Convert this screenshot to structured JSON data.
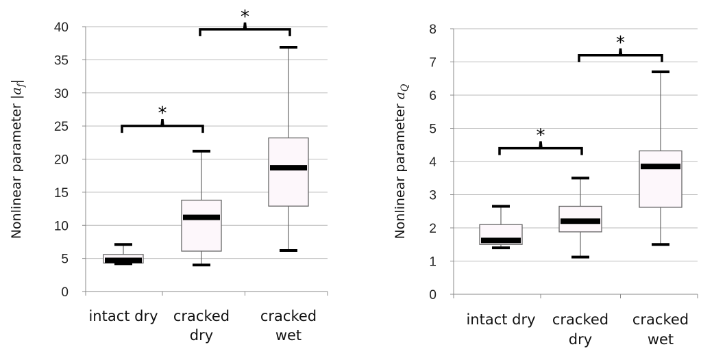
{
  "chart_data": [
    {
      "type": "box",
      "categories": [
        "intact dry",
        "cracked dry",
        "cracked wet"
      ],
      "category_lines": [
        [
          "intact dry"
        ],
        [
          "cracked",
          "dry"
        ],
        [
          "cracked",
          "wet"
        ]
      ],
      "ylabel_text": "Nonlinear parameter ",
      "ylabel_symbol": "|a",
      "ylabel_sub": "f",
      "ylabel_close": "|",
      "ylim": [
        0,
        40
      ],
      "yticks": [
        "0",
        "5",
        "10",
        "15",
        "20",
        "25",
        "30",
        "35",
        "40"
      ],
      "grid": true,
      "boxes": [
        {
          "min": 4.2,
          "q1": 4.3,
          "median": 4.7,
          "q3": 5.6,
          "max": 7.1
        },
        {
          "min": 4.0,
          "q1": 6.1,
          "median": 11.2,
          "q3": 13.8,
          "max": 21.2
        },
        {
          "min": 6.2,
          "q1": 12.9,
          "median": 18.7,
          "q3": 23.2,
          "max": 36.9
        }
      ],
      "significance": [
        {
          "from": 0,
          "to": 1,
          "y": 25.0,
          "label": "*"
        },
        {
          "from": 1,
          "to": 2,
          "y": 39.6,
          "label": "*"
        }
      ]
    },
    {
      "type": "box",
      "categories": [
        "intact dry",
        "cracked dry",
        "cracked wet"
      ],
      "category_lines": [
        [
          "intact dry"
        ],
        [
          "cracked",
          "dry"
        ],
        [
          "cracked",
          "wet"
        ]
      ],
      "ylabel_text": "Nonlinear parameter ",
      "ylabel_symbol": "a",
      "ylabel_sub": "Q",
      "ylabel_close": "",
      "ylim": [
        0,
        8
      ],
      "yticks": [
        "0",
        "1",
        "2",
        "3",
        "4",
        "5",
        "6",
        "7",
        "8"
      ],
      "grid": true,
      "boxes": [
        {
          "min": 1.4,
          "q1": 1.5,
          "median": 1.62,
          "q3": 2.1,
          "max": 2.65
        },
        {
          "min": 1.12,
          "q1": 1.88,
          "median": 2.2,
          "q3": 2.65,
          "max": 3.5
        },
        {
          "min": 1.5,
          "q1": 2.62,
          "median": 3.85,
          "q3": 4.32,
          "max": 6.7
        }
      ],
      "significance": [
        {
          "from": 0,
          "to": 1,
          "y": 4.4,
          "label": "*"
        },
        {
          "from": 1,
          "to": 2,
          "y": 7.2,
          "label": "*"
        }
      ]
    }
  ]
}
